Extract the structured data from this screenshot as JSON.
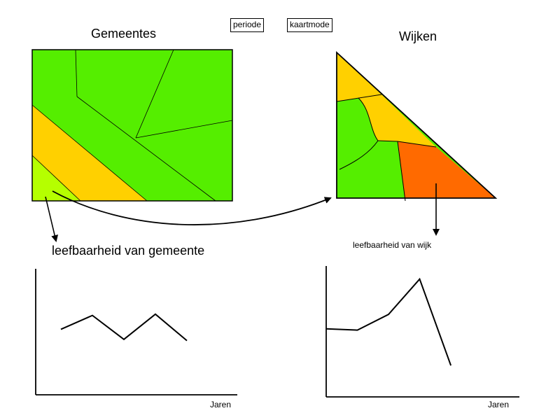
{
  "controls": {
    "period_label": "periode",
    "mapmode_label": "kaartmode"
  },
  "municipalities_map": {
    "title": "Gemeentes",
    "caption": "leefbaarheid van gemeente",
    "colors": {
      "green": "#55ee00",
      "yellow": "#ffd000",
      "lightgreen": "#b5ff00"
    }
  },
  "districts_map": {
    "title": "Wijken",
    "caption": "leefbaarheid van wijk",
    "colors": {
      "green": "#55ee00",
      "yellow": "#ffd000",
      "orange": "#ff6a00"
    }
  },
  "chart_data": [
    {
      "type": "line",
      "xlabel": "Jaren",
      "ylabel": "",
      "x": [
        1,
        2,
        3,
        4,
        5
      ],
      "y": [
        5.2,
        6.3,
        4.4,
        6.4,
        4.3
      ],
      "xlim": [
        0.2,
        6.6
      ],
      "ylim": [
        0,
        10
      ]
    },
    {
      "type": "line",
      "xlabel": "Jaren",
      "ylabel": "",
      "x": [
        1,
        2,
        3,
        4,
        5
      ],
      "y": [
        5.2,
        5.1,
        6.3,
        9.0,
        2.4
      ],
      "xlim": [
        1,
        7.2
      ],
      "ylim": [
        0,
        10
      ]
    }
  ]
}
